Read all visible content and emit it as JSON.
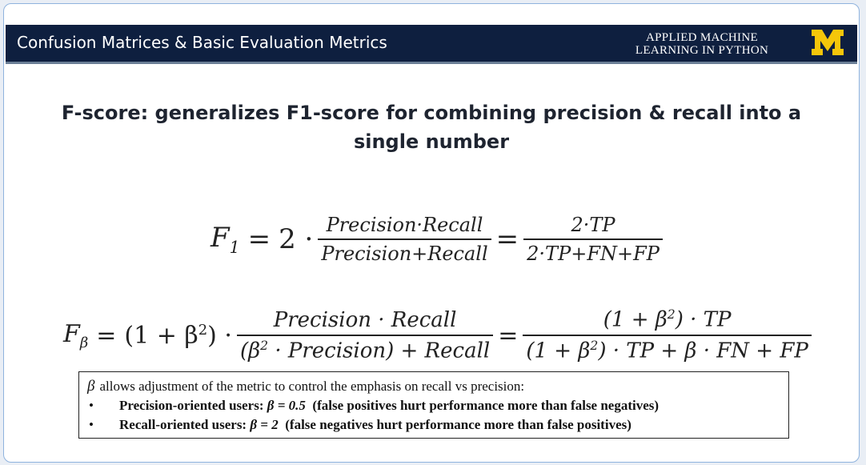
{
  "header": {
    "title": "Confusion Matrices & Basic Evaluation Metrics",
    "course_line1": "APPLIED MACHINE",
    "course_line2": "LEARNING IN PYTHON",
    "logo": "block-m-logo",
    "logo_color": "#f5c60a",
    "bar_color": "#0e1f3f"
  },
  "slide": {
    "title_line1": "F-score: generalizes F1-score for combining precision & recall into a",
    "title_line2": "single number"
  },
  "eq1": {
    "lhs_sym": "F",
    "lhs_sub": "1",
    "equals": "=",
    "coef": "2 ·",
    "frac1_num": "Precision·Recall",
    "frac1_den": "Precision+Recall",
    "equals2": "=",
    "frac2_num": "2·TP",
    "frac2_den": "2·TP+FN+FP"
  },
  "eq2": {
    "lhs_sym": "F",
    "lhs_sub": "β",
    "equals": "=",
    "coef": "(1 + β",
    "coef_sup": "2",
    "coef_end": ") ·",
    "frac1_num": "Precision · Recall",
    "frac1_den_a": "(β",
    "frac1_den_sup": "2",
    "frac1_den_b": " · Precision) + Recall",
    "equals2": "=",
    "frac2_num_a": "(1 + β",
    "frac2_num_sup": "2",
    "frac2_num_b": ") · TP",
    "frac2_den_a": "(1 + β",
    "frac2_den_sup": "2",
    "frac2_den_b": ") · TP + β · FN + FP"
  },
  "note": {
    "beta": "β",
    "intro": "allows adjustment of the metric to control the emphasis on recall vs precision:",
    "items": [
      {
        "label": "Precision-oriented users: ",
        "value": "β = 0.5",
        "desc": "  (false positives hurt performance more than false negatives)"
      },
      {
        "label": "Recall-oriented users: ",
        "value": "β = 2",
        "desc": "  (false negatives hurt performance more than false positives)"
      }
    ]
  }
}
